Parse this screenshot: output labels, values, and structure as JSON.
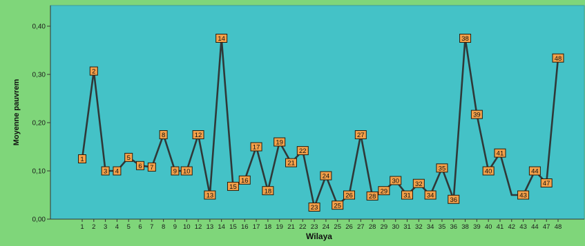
{
  "chart_data": {
    "type": "line",
    "xlabel": "Wilaya",
    "ylabel": "Moyenne pauvrem",
    "ylim": [
      0,
      0.44
    ],
    "yticks": [
      0,
      0.1,
      0.2,
      0.3,
      0.4
    ],
    "ytick_labels": [
      "0,00",
      "0,10",
      "0,20",
      "0,30",
      "0,40"
    ],
    "grid": false,
    "categories": [
      "1",
      "2",
      "3",
      "4",
      "5",
      "6",
      "7",
      "8",
      "9",
      "10",
      "12",
      "13",
      "14",
      "15",
      "16",
      "17",
      "18",
      "19",
      "21",
      "22",
      "23",
      "24",
      "25",
      "26",
      "27",
      "28",
      "29",
      "30",
      "31",
      "32",
      "34",
      "35",
      "36",
      "38",
      "39",
      "40",
      "41",
      "42",
      "43",
      "44",
      "47",
      "48"
    ],
    "values": [
      0.125,
      0.307,
      0.1,
      0.1,
      0.128,
      0.111,
      0.108,
      0.175,
      0.1,
      0.1,
      0.175,
      0.05,
      0.375,
      0.068,
      0.081,
      0.15,
      0.059,
      0.16,
      0.117,
      0.142,
      0.025,
      0.09,
      0.029,
      0.05,
      0.175,
      0.048,
      0.059,
      0.08,
      0.05,
      0.074,
      0.05,
      0.106,
      0.041,
      0.375,
      0.217,
      0.1,
      0.137,
      0.05,
      0.05,
      0.1,
      0.075,
      0.334
    ],
    "point_labels": [
      "1",
      "2",
      "3",
      "4",
      "5",
      "6",
      "7",
      "8",
      "9",
      "10",
      "12",
      "13",
      "14",
      "15",
      "16",
      "17",
      "18",
      "19",
      "21",
      "22",
      "23",
      "24",
      "25",
      "26",
      "27",
      "28",
      "29",
      "30",
      "31",
      "32",
      "34",
      "35",
      "36",
      "38",
      "39",
      "40",
      "41",
      "42",
      "43",
      "44",
      "47",
      "48"
    ],
    "labeled_points": [
      0,
      1,
      2,
      3,
      4,
      5,
      6,
      7,
      8,
      9,
      10,
      11,
      12,
      13,
      14,
      15,
      16,
      17,
      18,
      19,
      20,
      21,
      22,
      23,
      24,
      25,
      26,
      27,
      28,
      29,
      30,
      31,
      32,
      33,
      34,
      35,
      36,
      38,
      39,
      40,
      41
    ],
    "colors": {
      "background": "#7fd67a",
      "plot_area": "#44c2c7",
      "line": "#2f3838",
      "marker_fill": "#f4a14a",
      "marker_stroke": "#2a1a0a"
    }
  }
}
